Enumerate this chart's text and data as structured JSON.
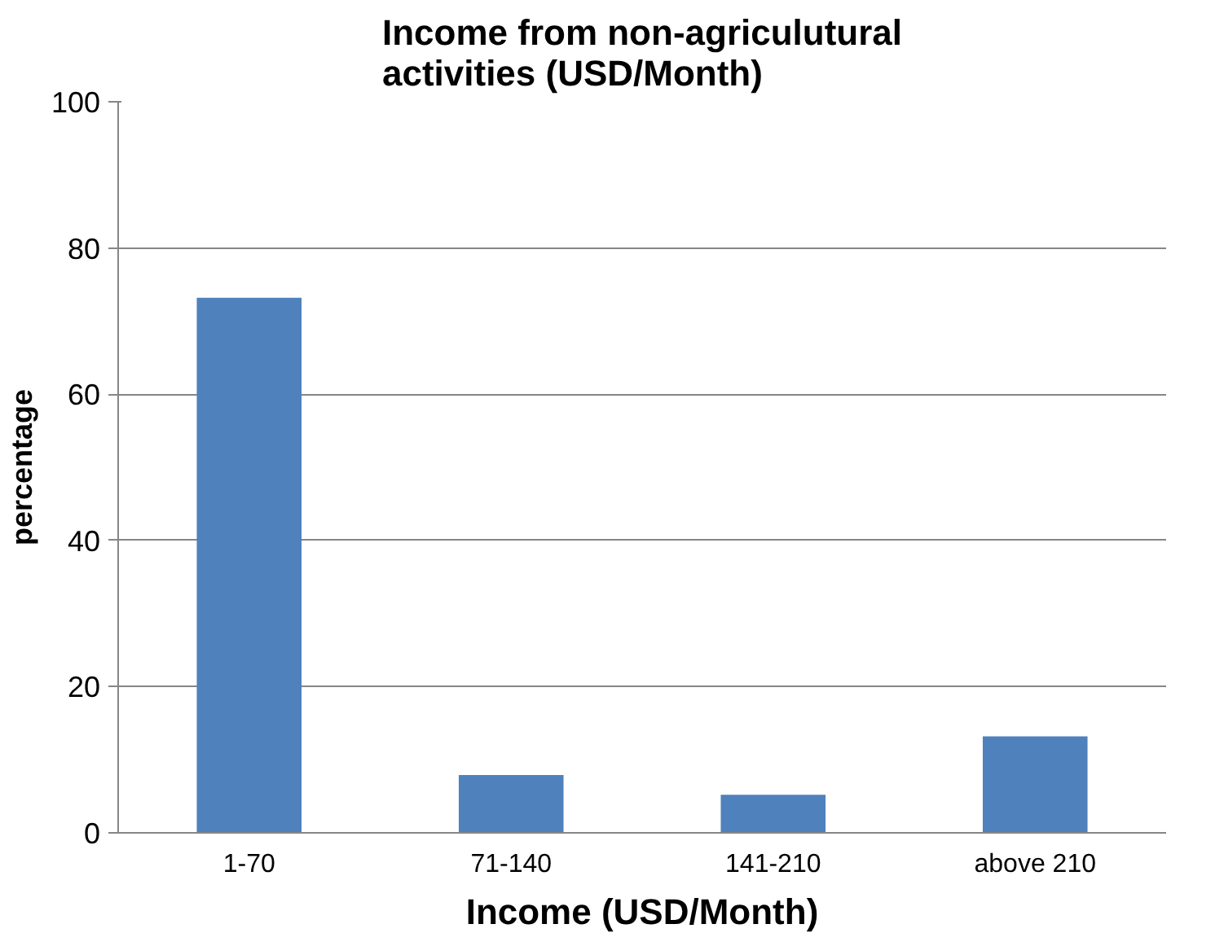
{
  "chart_data": {
    "type": "bar",
    "title": "Income from non-agriculutural activities (USD/Month)",
    "xlabel": "Income (USD/Month)",
    "ylabel": "percentage",
    "categories": [
      "1-70",
      "71-140",
      "141-210",
      "above 210"
    ],
    "values": [
      73.2,
      7.9,
      5.2,
      13.2
    ],
    "color": "#4f81bd",
    "ylim": [
      0,
      100
    ],
    "yticks": [
      0,
      20,
      40,
      60,
      80,
      100
    ],
    "grid": "y"
  }
}
